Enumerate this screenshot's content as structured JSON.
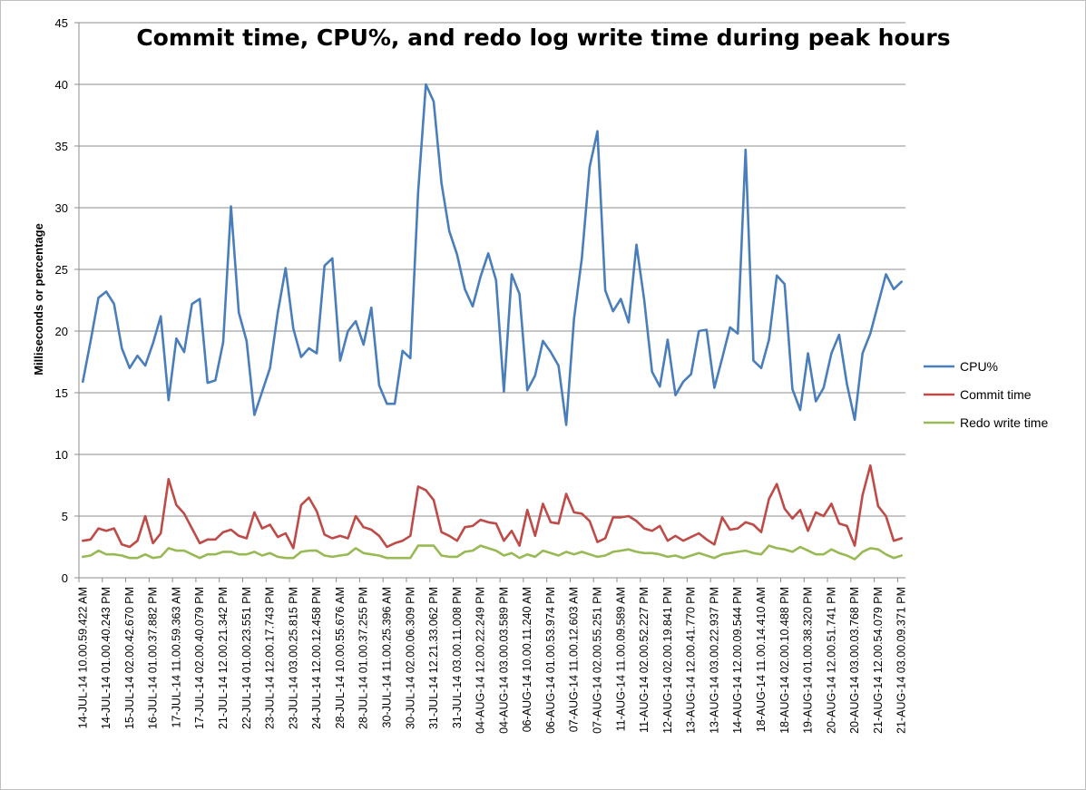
{
  "chart_data": {
    "type": "line",
    "title": "Commit time, CPU%, and redo log write time during peak hours",
    "ylabel": "Milliseconds or percentage",
    "xlabel": "",
    "ylim": [
      0,
      45
    ],
    "yticks": [
      0,
      5,
      10,
      15,
      20,
      25,
      30,
      35,
      40,
      45
    ],
    "grid": "horizontal",
    "legend": "right",
    "tick_labels": [
      "14-JUL-14 10.00.59.422 AM",
      "14-JUL-14 01.00.40.243 PM",
      "15-JUL-14 02.00.42.670 PM",
      "16-JUL-14 01.00.37.882 PM",
      "17-JUL-14 11.00.59.363 AM",
      "17-JUL-14 02.00.40.079 PM",
      "21-JUL-14 12.00.21.342 PM",
      "22-JUL-14 01.00.23.551 PM",
      "23-JUL-14 12.00.17.743 PM",
      "23-JUL-14 03.00.25.815 PM",
      "24-JUL-14 12.00.12.458 PM",
      "28-JUL-14 10.00.55.676 AM",
      "28-JUL-14 01.00.37.255 PM",
      "30-JUL-14 11.00.25.396 AM",
      "30-JUL-14 02.00.06.309 PM",
      "31-JUL-14 12.21.33.062 PM",
      "31-JUL-14 03.00.11.008 PM",
      "04-AUG-14 12.00.22.249 PM",
      "04-AUG-14 03.00.03.589 PM",
      "06-AUG-14 10.00.11.240 AM",
      "06-AUG-14 01.00.53.974 PM",
      "07-AUG-14 11.00.12.603 AM",
      "07-AUG-14 02.00.55.251 PM",
      "11-AUG-14 11.00.09.589 AM",
      "11-AUG-14 02.00.52.227 PM",
      "12-AUG-14 02.00.19.841 PM",
      "13-AUG-14 12.00.41.770 PM",
      "13-AUG-14 03.00.22.937 PM",
      "14-AUG-14 12.00.09.544 PM",
      "18-AUG-14 11.00.14.410 AM",
      "18-AUG-14 02.00.10.488 PM",
      "19-AUG-14 01.00.38.320 PM",
      "20-AUG-14 12.00.51.741 PM",
      "20-AUG-14 03.00.03.768 PM",
      "21-AUG-14 12.00.54.079 PM",
      "21-AUG-14 03.00.09.371 PM"
    ],
    "series": [
      {
        "name": "CPU%",
        "color": "#4a7ebb",
        "values": [
          15.9,
          19.2,
          22.7,
          23.2,
          22.2,
          18.6,
          17.0,
          18.0,
          17.2,
          19.0,
          21.2,
          14.4,
          19.4,
          18.3,
          22.2,
          22.6,
          15.8,
          16.0,
          19.1,
          30.1,
          21.5,
          19.2,
          13.2,
          15.1,
          17.0,
          21.5,
          25.1,
          20.2,
          17.9,
          18.6,
          18.2,
          25.3,
          25.9,
          17.6,
          20.0,
          20.8,
          18.9,
          21.9,
          15.6,
          14.1,
          14.1,
          18.4,
          17.8,
          31.3,
          40.0,
          38.6,
          32.0,
          28.1,
          26.2,
          23.4,
          22.0,
          24.4,
          26.3,
          24.1,
          15.1,
          24.6,
          23.0,
          15.2,
          16.4,
          19.2,
          18.3,
          17.2,
          12.4,
          21.0,
          25.9,
          33.3,
          36.2,
          23.3,
          21.6,
          22.6,
          20.7,
          27.0,
          22.5,
          16.7,
          15.5,
          19.3,
          14.8,
          15.9,
          16.5,
          20.0,
          20.1,
          15.4,
          17.8,
          20.3,
          19.8,
          34.7,
          17.6,
          17.0,
          19.3,
          24.5,
          23.8,
          15.3,
          13.6,
          18.2,
          14.3,
          15.4,
          18.2,
          19.7,
          15.7,
          12.8,
          18.2,
          19.8,
          22.2,
          24.6,
          23.4,
          24.0
        ]
      },
      {
        "name": "Commit time",
        "color": "#be4b48",
        "values": [
          3.0,
          3.1,
          4.0,
          3.8,
          4.0,
          2.7,
          2.5,
          3.0,
          5.0,
          2.8,
          3.6,
          8.0,
          5.9,
          5.2,
          4.0,
          2.8,
          3.1,
          3.1,
          3.7,
          3.9,
          3.4,
          3.2,
          5.3,
          4.0,
          4.3,
          3.3,
          3.6,
          2.4,
          5.9,
          6.5,
          5.4,
          3.5,
          3.2,
          3.4,
          3.2,
          5.0,
          4.1,
          3.9,
          3.4,
          2.5,
          2.8,
          3.0,
          3.4,
          7.4,
          7.1,
          6.3,
          3.7,
          3.4,
          3.0,
          4.1,
          4.2,
          4.7,
          4.5,
          4.4,
          3.0,
          3.8,
          2.6,
          5.5,
          3.4,
          6.0,
          4.5,
          4.4,
          6.8,
          5.3,
          5.2,
          4.6,
          2.9,
          3.2,
          4.9,
          4.9,
          5.0,
          4.6,
          4.0,
          3.8,
          4.2,
          3.0,
          3.4,
          3.0,
          3.3,
          3.6,
          3.1,
          2.7,
          4.9,
          3.9,
          4.0,
          4.5,
          4.3,
          3.7,
          6.4,
          7.6,
          5.6,
          4.8,
          5.5,
          3.8,
          5.3,
          5.0,
          6.0,
          4.4,
          4.2,
          2.6,
          6.7,
          9.1,
          5.8,
          5.0,
          3.0,
          3.2
        ]
      },
      {
        "name": "Redo write time",
        "color": "#98b954",
        "values": [
          1.7,
          1.8,
          2.2,
          1.9,
          1.9,
          1.8,
          1.6,
          1.6,
          1.9,
          1.6,
          1.7,
          2.4,
          2.2,
          2.2,
          1.9,
          1.6,
          1.9,
          1.9,
          2.1,
          2.1,
          1.9,
          1.9,
          2.1,
          1.8,
          2.0,
          1.7,
          1.6,
          1.6,
          2.1,
          2.2,
          2.2,
          1.8,
          1.7,
          1.8,
          1.9,
          2.4,
          2.0,
          1.9,
          1.8,
          1.6,
          1.6,
          1.6,
          1.6,
          2.6,
          2.6,
          2.6,
          1.8,
          1.7,
          1.7,
          2.1,
          2.2,
          2.6,
          2.4,
          2.2,
          1.8,
          2.0,
          1.6,
          1.9,
          1.7,
          2.2,
          2.0,
          1.8,
          2.1,
          1.9,
          2.1,
          1.9,
          1.7,
          1.8,
          2.1,
          2.2,
          2.3,
          2.1,
          2.0,
          2.0,
          1.9,
          1.7,
          1.8,
          1.6,
          1.8,
          2.0,
          1.8,
          1.6,
          1.9,
          2.0,
          2.1,
          2.2,
          2.0,
          1.9,
          2.6,
          2.4,
          2.3,
          2.1,
          2.5,
          2.2,
          1.9,
          1.9,
          2.3,
          2.0,
          1.8,
          1.5,
          2.1,
          2.4,
          2.3,
          1.9,
          1.6,
          1.8
        ]
      }
    ]
  }
}
